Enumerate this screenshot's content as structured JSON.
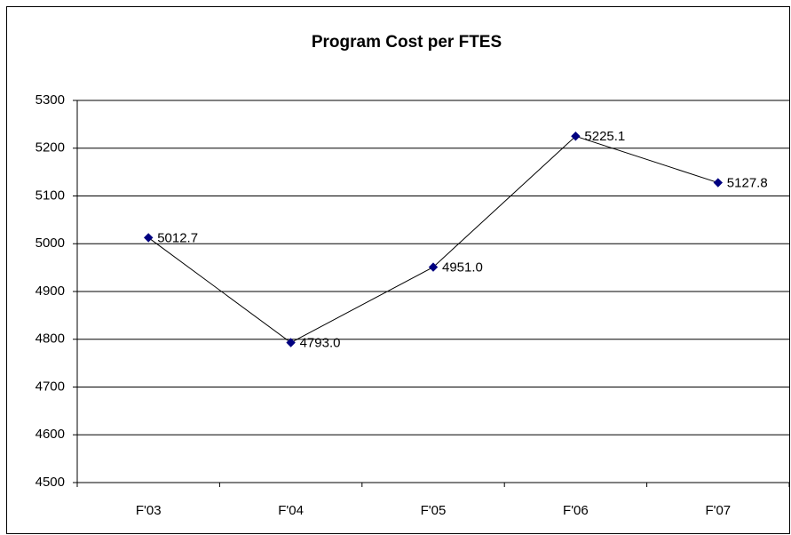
{
  "chart_data": {
    "type": "line",
    "title": "Program Cost per FTES",
    "categories": [
      "F'03",
      "F'04",
      "F'05",
      "F'06",
      "F'07"
    ],
    "series": [
      {
        "name": "Program Cost per FTES",
        "color": "#000080",
        "values": [
          5012.7,
          4793.0,
          4951.0,
          5225.1,
          5127.8
        ],
        "value_labels": [
          "5012.7",
          "4793.0",
          "4951.0",
          "5225.1",
          "5127.8"
        ]
      }
    ],
    "ylim": [
      4500,
      5300
    ],
    "yticks": [
      4500,
      4600,
      4700,
      4800,
      4900,
      5000,
      5100,
      5200,
      5300
    ],
    "grid": true
  }
}
